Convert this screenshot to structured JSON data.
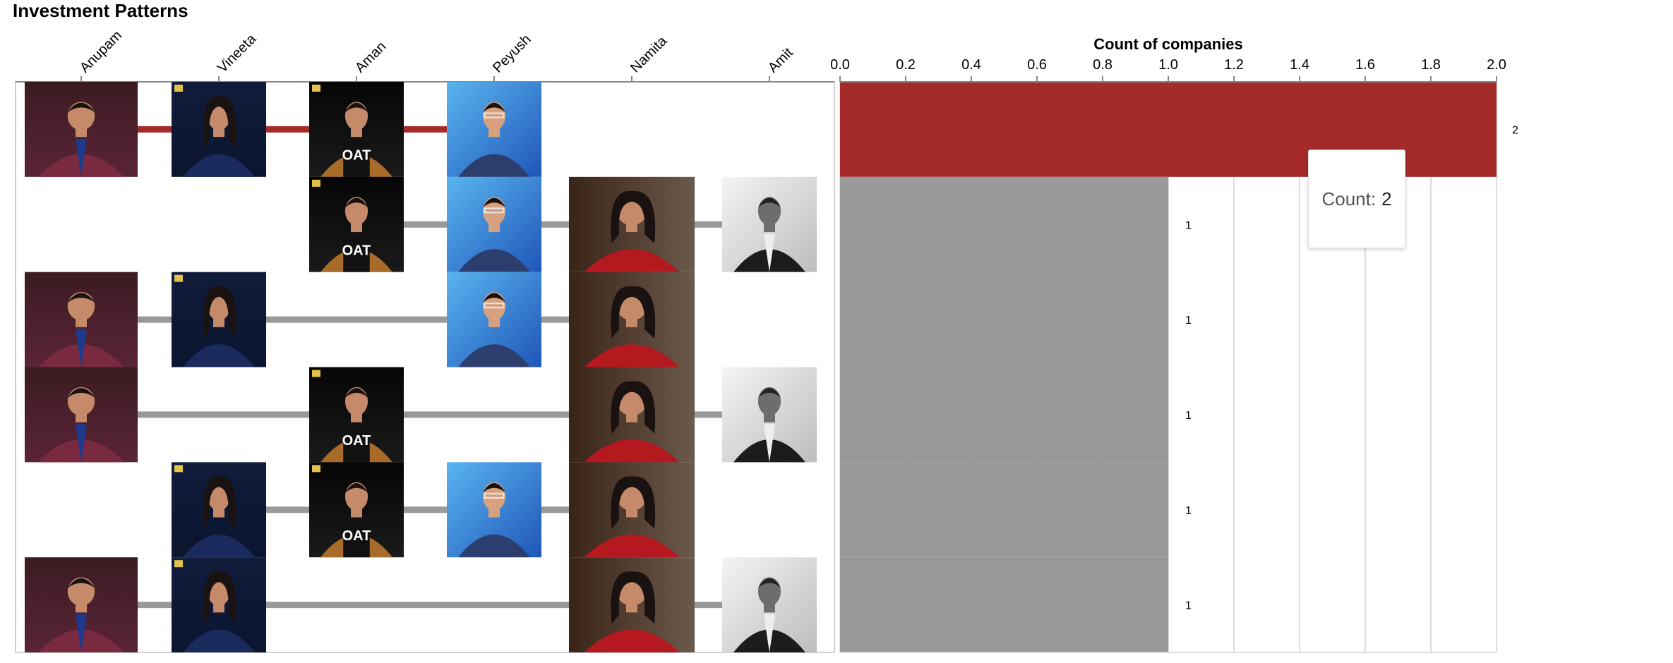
{
  "title": "Investment Patterns",
  "tooltip": {
    "label": "Count:",
    "value": "2"
  },
  "chart_data": [
    {
      "type": "table",
      "description_columns": [
        "Anupam",
        "Vineeta",
        "Aman",
        "Peyush",
        "Namita",
        "Amit"
      ],
      "rows": [
        {
          "investors": [
            "Anupam",
            "Vineeta",
            "Aman",
            "Peyush"
          ],
          "highlighted": true
        },
        {
          "investors": [
            "Aman",
            "Peyush",
            "Namita",
            "Amit"
          ],
          "highlighted": false
        },
        {
          "investors": [
            "Anupam",
            "Vineeta",
            "Peyush",
            "Namita"
          ],
          "highlighted": false
        },
        {
          "investors": [
            "Anupam",
            "Aman",
            "Namita",
            "Amit"
          ],
          "highlighted": false
        },
        {
          "investors": [
            "Vineeta",
            "Aman",
            "Peyush",
            "Namita"
          ],
          "highlighted": false
        },
        {
          "investors": [
            "Anupam",
            "Vineeta",
            "Namita",
            "Amit"
          ],
          "highlighted": false
        }
      ],
      "colors": {
        "highlight": "#a52a2a",
        "default": "#999999"
      }
    },
    {
      "type": "bar",
      "orientation": "horizontal",
      "xlabel": "Count of companies",
      "xlim": [
        0,
        2
      ],
      "ticks": [
        "0.0",
        "0.2",
        "0.4",
        "0.6",
        "0.8",
        "1.0",
        "1.2",
        "1.4",
        "1.6",
        "1.8",
        "2.0"
      ],
      "values": [
        2,
        1,
        1,
        1,
        1,
        1
      ],
      "data_labels": [
        "2",
        "1",
        "1",
        "1",
        "1",
        "1"
      ],
      "grid": true,
      "colors": {
        "highlight": "#a52a2a",
        "default": "#999999"
      }
    }
  ]
}
